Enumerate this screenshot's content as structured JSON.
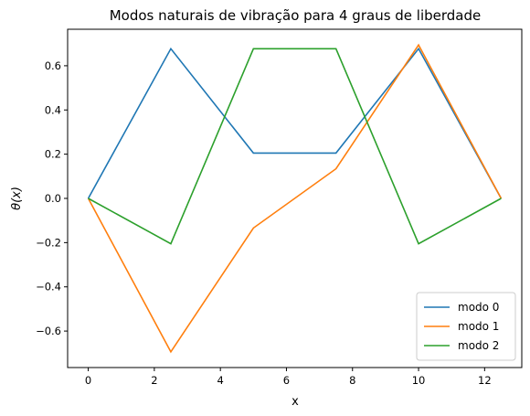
{
  "chart_data": {
    "type": "line",
    "title": "Modos naturais de vibração para 4 graus de liberdade",
    "xlabel": "x",
    "ylabel": "θ(x)",
    "x": [
      0,
      2.5,
      5,
      7.5,
      10,
      12.5
    ],
    "xlim": [
      -0.625,
      13.125
    ],
    "ylim": [
      -0.765,
      0.765
    ],
    "xticks": [
      0,
      2,
      4,
      6,
      8,
      10,
      12
    ],
    "xtick_labels": [
      "0",
      "2",
      "4",
      "6",
      "8",
      "10",
      "12"
    ],
    "yticks": [
      -0.6,
      -0.4,
      -0.2,
      0.0,
      0.2,
      0.4,
      0.6
    ],
    "ytick_labels": [
      "−0.6",
      "−0.4",
      "−0.2",
      "0.0",
      "0.2",
      "0.4",
      "0.6"
    ],
    "grid": false,
    "legend_position": "lower-right",
    "series": [
      {
        "name": "modo 0",
        "color": "#1f77b4",
        "values": [
          0,
          0.677,
          0.205,
          0.205,
          0.677,
          0
        ]
      },
      {
        "name": "modo 1",
        "color": "#ff7f0e",
        "values": [
          0,
          -0.694,
          -0.134,
          0.134,
          0.694,
          0
        ]
      },
      {
        "name": "modo 2",
        "color": "#2ca02c",
        "values": [
          0,
          -0.205,
          0.677,
          0.677,
          -0.205,
          0
        ]
      }
    ]
  }
}
